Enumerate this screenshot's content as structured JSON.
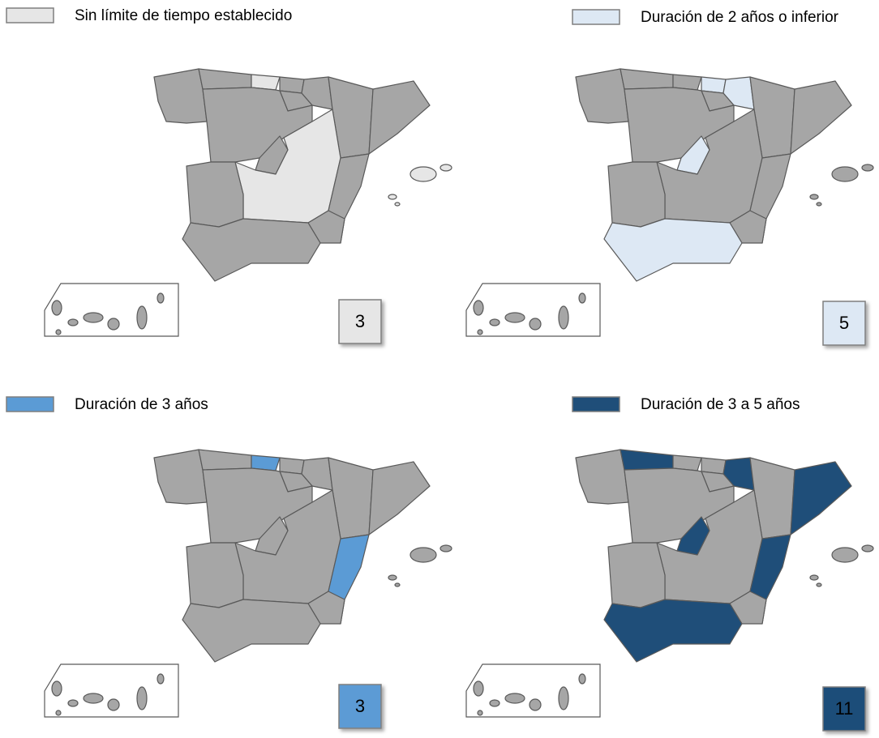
{
  "panels": [
    {
      "label": "Sin límite de tiempo establecido",
      "count": "3",
      "color": "#e6e6e6",
      "count_text_color": "#000000"
    },
    {
      "label": "Duración de 2 años o inferior",
      "count": "5",
      "color": "#dde8f4",
      "count_text_color": "#000000"
    },
    {
      "label": "Duración de 3 años",
      "count": "3",
      "color": "#5b9bd5",
      "count_text_color": "#ffffff"
    },
    {
      "label": "Duración de 3 a 5 años",
      "count": "11",
      "color": "#1f4e79",
      "count_text_color": "#ffffff"
    }
  ]
}
